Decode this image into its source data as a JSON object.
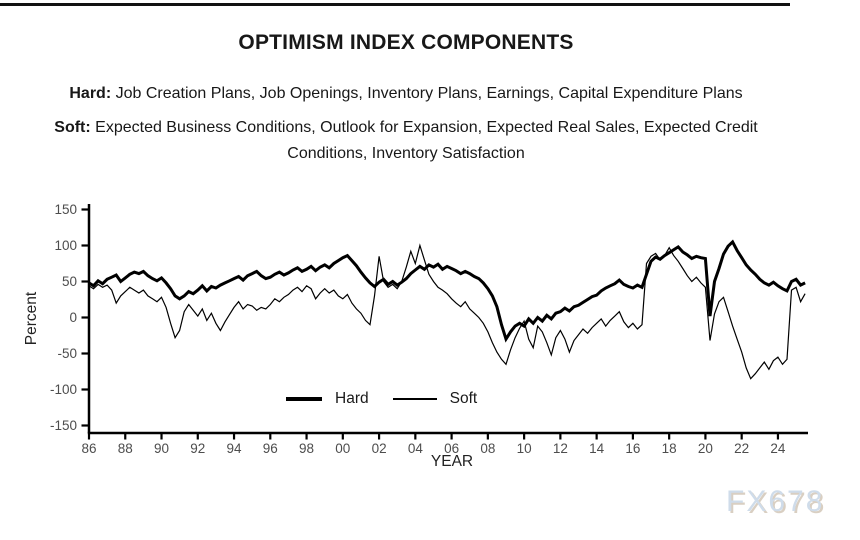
{
  "title": "OPTIMISM INDEX COMPONENTS",
  "subtitle_hard": {
    "prefix": "Hard:",
    "text": " Job Creation Plans, Job Openings, Inventory Plans, Earnings, Capital Expenditure Plans"
  },
  "subtitle_soft": {
    "prefix": "Soft:",
    "text": " Expected Business Conditions, Outlook for Expansion, Expected Real Sales, Expected Credit Conditions, Inventory Satisfaction"
  },
  "legend": {
    "hard_label": "Hard",
    "soft_label": "Soft"
  },
  "watermark": "FX678",
  "chart_data": {
    "type": "line",
    "title": "OPTIMISM INDEX COMPONENTS",
    "xlabel": "YEAR",
    "ylabel": "Percent",
    "xlim": [
      1986,
      2025.6
    ],
    "ylim": [
      -150,
      150
    ],
    "grid": false,
    "legend_position": "inside-bottom-center",
    "axis_color": "#000000",
    "y_ticks": [
      150,
      100,
      50,
      0,
      -50,
      -100,
      -150
    ],
    "x_ticks": [
      [
        1986,
        "86"
      ],
      [
        1988,
        "88"
      ],
      [
        1990,
        "90"
      ],
      [
        1992,
        "92"
      ],
      [
        1994,
        "94"
      ],
      [
        1996,
        "96"
      ],
      [
        1998,
        "98"
      ],
      [
        2000,
        "00"
      ],
      [
        2002,
        "02"
      ],
      [
        2004,
        "04"
      ],
      [
        2006,
        "06"
      ],
      [
        2008,
        "08"
      ],
      [
        2010,
        "10"
      ],
      [
        2012,
        "12"
      ],
      [
        2014,
        "14"
      ],
      [
        2016,
        "16"
      ],
      [
        2018,
        "18"
      ],
      [
        2020,
        "20"
      ],
      [
        2022,
        "22"
      ],
      [
        2024,
        "24"
      ]
    ],
    "series": [
      {
        "name": "Hard",
        "color": "#000000",
        "stroke_width": 3,
        "start": 1986,
        "step": 0.25,
        "values": [
          48,
          44,
          51,
          47,
          53,
          56,
          59,
          50,
          55,
          60,
          63,
          61,
          64,
          58,
          54,
          51,
          55,
          48,
          40,
          30,
          26,
          30,
          36,
          33,
          38,
          44,
          37,
          43,
          41,
          45,
          48,
          51,
          54,
          57,
          52,
          58,
          61,
          64,
          58,
          54,
          56,
          60,
          63,
          59,
          62,
          66,
          69,
          64,
          67,
          71,
          65,
          70,
          73,
          69,
          75,
          79,
          83,
          86,
          79,
          72,
          63,
          55,
          48,
          43,
          49,
          53,
          46,
          50,
          45,
          49,
          54,
          61,
          66,
          71,
          67,
          73,
          70,
          74,
          67,
          71,
          68,
          65,
          61,
          64,
          61,
          57,
          54,
          48,
          40,
          30,
          15,
          -10,
          -30,
          -20,
          -12,
          -8,
          -12,
          -2,
          -8,
          0,
          -5,
          3,
          -2,
          6,
          8,
          13,
          9,
          15,
          17,
          21,
          25,
          29,
          31,
          37,
          41,
          44,
          47,
          52,
          46,
          43,
          41,
          45,
          42,
          60,
          78,
          84,
          81,
          86,
          90,
          94,
          98,
          91,
          87,
          82,
          85,
          83,
          82,
          2,
          50,
          68,
          88,
          99,
          105,
          93,
          83,
          73,
          66,
          60,
          53,
          48,
          45,
          49,
          44,
          40,
          37,
          50,
          53,
          45,
          48
        ]
      },
      {
        "name": "Soft",
        "color": "#000000",
        "stroke_width": 1.2,
        "start": 1986,
        "step": 0.25,
        "values": [
          44,
          40,
          46,
          42,
          45,
          38,
          20,
          30,
          36,
          42,
          38,
          34,
          38,
          30,
          26,
          22,
          28,
          14,
          -8,
          -28,
          -18,
          8,
          18,
          10,
          2,
          12,
          -4,
          6,
          -8,
          -18,
          -6,
          4,
          14,
          22,
          12,
          18,
          16,
          10,
          14,
          12,
          18,
          26,
          22,
          28,
          32,
          38,
          42,
          36,
          44,
          40,
          26,
          34,
          40,
          34,
          38,
          30,
          26,
          32,
          20,
          12,
          6,
          -4,
          -10,
          30,
          85,
          50,
          42,
          46,
          40,
          50,
          70,
          92,
          75,
          100,
          80,
          60,
          50,
          42,
          38,
          33,
          26,
          20,
          15,
          22,
          12,
          6,
          0,
          -8,
          -20,
          -35,
          -48,
          -58,
          -65,
          -45,
          -28,
          -15,
          -5,
          -30,
          -42,
          -12,
          -20,
          -35,
          -52,
          -28,
          -18,
          -30,
          -48,
          -32,
          -24,
          -16,
          -22,
          -14,
          -8,
          -2,
          -12,
          -4,
          2,
          8,
          -6,
          -14,
          -8,
          -16,
          -10,
          75,
          85,
          89,
          80,
          86,
          97,
          86,
          78,
          68,
          58,
          50,
          56,
          48,
          42,
          -32,
          5,
          22,
          28,
          8,
          -12,
          -30,
          -48,
          -70,
          -85,
          -78,
          -70,
          -62,
          -72,
          -60,
          -55,
          -65,
          -58,
          38,
          42,
          22,
          33
        ]
      }
    ]
  }
}
